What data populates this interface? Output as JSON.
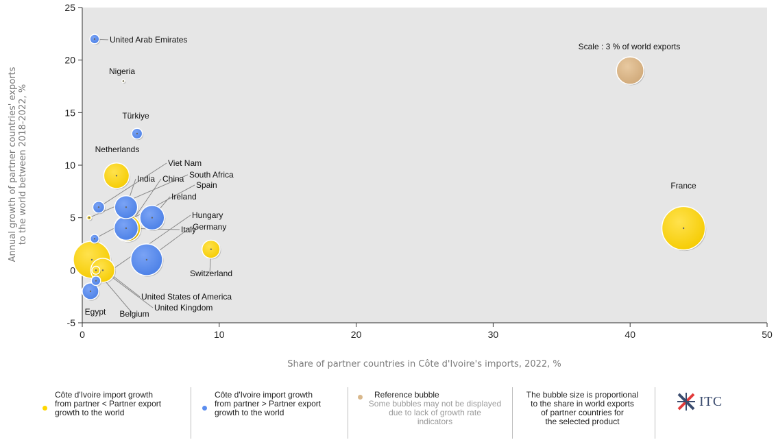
{
  "chart_data": {
    "type": "scatter",
    "xlabel": "Share of partner countries in Côte d'Ivoire's imports, 2022, %",
    "ylabel": "Annual growth of partner countries' exports to the world between 2018-2022, %",
    "xlim": [
      0,
      50
    ],
    "ylim": [
      -5,
      25
    ],
    "xticks": [
      0,
      10,
      20,
      30,
      40,
      50
    ],
    "yticks": [
      -5,
      0,
      5,
      10,
      15,
      20,
      25
    ],
    "grid": false,
    "background": "#e6e6e6",
    "colors": {
      "yellow": "#ffd700",
      "blue": "#5b8def",
      "reference": "#d9b88c"
    },
    "points": [
      {
        "label": "United Arab Emirates",
        "x": 0.9,
        "y": 22,
        "size": 0.35,
        "group": "blue"
      },
      {
        "label": "Nigeria",
        "x": 3.0,
        "y": 18,
        "size": 0.02,
        "group": "yellow"
      },
      {
        "label": "Türkiye",
        "x": 4.0,
        "y": 13,
        "size": 0.45,
        "group": "blue"
      },
      {
        "label": "Netherlands",
        "x": 2.5,
        "y": 9,
        "size": 2.6,
        "group": "yellow"
      },
      {
        "label": "Viet Nam",
        "x": 1.2,
        "y": 6,
        "size": 0.55,
        "group": "blue"
      },
      {
        "label": "India",
        "x": 3.2,
        "y": 6,
        "size": 2.1,
        "group": "blue"
      },
      {
        "label": "China",
        "x": 3.3,
        "y": 4,
        "size": 2.8,
        "group": "yellow"
      },
      {
        "label": "South Africa",
        "x": 0.5,
        "y": 5,
        "size": 0.08,
        "group": "yellow"
      },
      {
        "label": "Spain",
        "x": 0.9,
        "y": 3,
        "size": 0.3,
        "group": "blue"
      },
      {
        "label": "Ireland",
        "x": 5.1,
        "y": 5,
        "size": 2.4,
        "group": "blue"
      },
      {
        "label": "Hungary",
        "x": 1.0,
        "y": -1,
        "size": 0.35,
        "group": "blue"
      },
      {
        "label": "Italy",
        "x": 3.2,
        "y": 4,
        "size": 2.3,
        "group": "blue"
      },
      {
        "label": "Germany",
        "x": 4.7,
        "y": 1,
        "size": 4.0,
        "group": "blue"
      },
      {
        "label": "Switzerland",
        "x": 9.4,
        "y": 2,
        "size": 1.3,
        "group": "yellow"
      },
      {
        "label": "United States of America",
        "x": 0.7,
        "y": 1,
        "size": 5.5,
        "group": "yellow"
      },
      {
        "label": "United Kingdom",
        "x": 1.5,
        "y": 0,
        "size": 2.3,
        "group": "yellow"
      },
      {
        "label": "Egypt",
        "x": 0.6,
        "y": -2,
        "size": 1.1,
        "group": "blue"
      },
      {
        "label": "Belgium",
        "x": 1.0,
        "y": 0,
        "size": 0.25,
        "group": "yellow"
      },
      {
        "label": "France",
        "x": 43.9,
        "y": 4,
        "size": 7.5,
        "group": "yellow"
      }
    ],
    "reference": {
      "label": "Scale : 3 % of world exports",
      "x": 40,
      "y": 19,
      "size": 3
    }
  },
  "legend": {
    "yellow_text": [
      "Côte d'Ivoire import growth",
      "from partner < Partner export",
      "growth to the world"
    ],
    "blue_text": [
      "Côte d'Ivoire import growth",
      "from partner > Partner export",
      "growth to the world"
    ],
    "reference_title": "Reference bubble",
    "reference_note": [
      "Some bubbles may not be displayed",
      "due to lack of growth rate",
      "indicators"
    ],
    "size_note": [
      "The bubble size is proportional",
      "to the share in world exports",
      "of partner countries for",
      "the selected product"
    ],
    "logo_text": "ITC"
  }
}
